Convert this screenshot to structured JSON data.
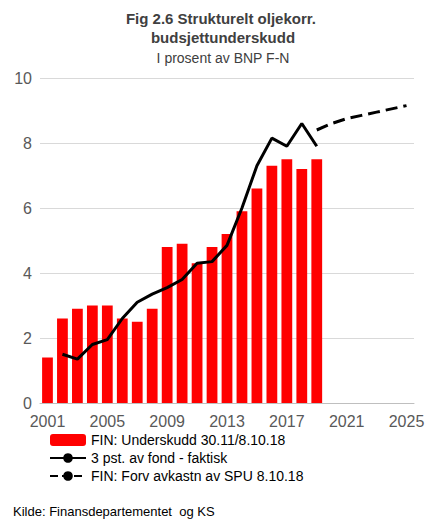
{
  "chart_data": {
    "type": "bar",
    "title": "Fig 2.6 Strukturelt oljekorr. budsjettunderskudd",
    "subtitle": "I prosent av BNP F-N",
    "source": "Kilde: Finansdepartementet  og KS",
    "categories": [
      "2001",
      null,
      null,
      null,
      "2005",
      null,
      null,
      null,
      "2009",
      null,
      null,
      null,
      "2013",
      null,
      null,
      null,
      "2017",
      null,
      null,
      null,
      "2021",
      null,
      null,
      null,
      "2025"
    ],
    "series": [
      {
        "name": "FIN: Underskudd 30.11/8.10.18",
        "type": "bar",
        "color": "#ff0000",
        "values": [
          1.4,
          2.6,
          2.9,
          3.0,
          3.0,
          2.6,
          2.5,
          2.9,
          4.8,
          4.9,
          4.3,
          4.8,
          5.2,
          5.9,
          6.6,
          7.3,
          7.5,
          7.2,
          7.5,
          null,
          null,
          null,
          null,
          null,
          null
        ]
      },
      {
        "name": "3 pst. av fond - faktisk",
        "type": "line",
        "color": "#000000",
        "line_style": "solid",
        "values": [
          null,
          1.5,
          1.35,
          1.8,
          1.95,
          2.6,
          3.1,
          3.35,
          3.55,
          3.8,
          4.3,
          4.35,
          4.85,
          6.0,
          7.3,
          8.15,
          7.9,
          8.6,
          7.9,
          null,
          null,
          null,
          null,
          null,
          null
        ]
      },
      {
        "name": "FIN: Forv avkastn av SPU 8.10.18",
        "type": "line",
        "color": "#000000",
        "line_style": "dashed",
        "values": [
          null,
          null,
          null,
          null,
          null,
          null,
          null,
          null,
          null,
          null,
          null,
          null,
          null,
          null,
          null,
          null,
          null,
          null,
          8.4,
          8.6,
          8.75,
          8.85,
          8.95,
          9.05,
          9.15
        ]
      }
    ],
    "ylim": [
      0,
      10
    ],
    "yticks": [
      0,
      2,
      4,
      6,
      8,
      10
    ],
    "grid": true,
    "legend": "bottom"
  }
}
